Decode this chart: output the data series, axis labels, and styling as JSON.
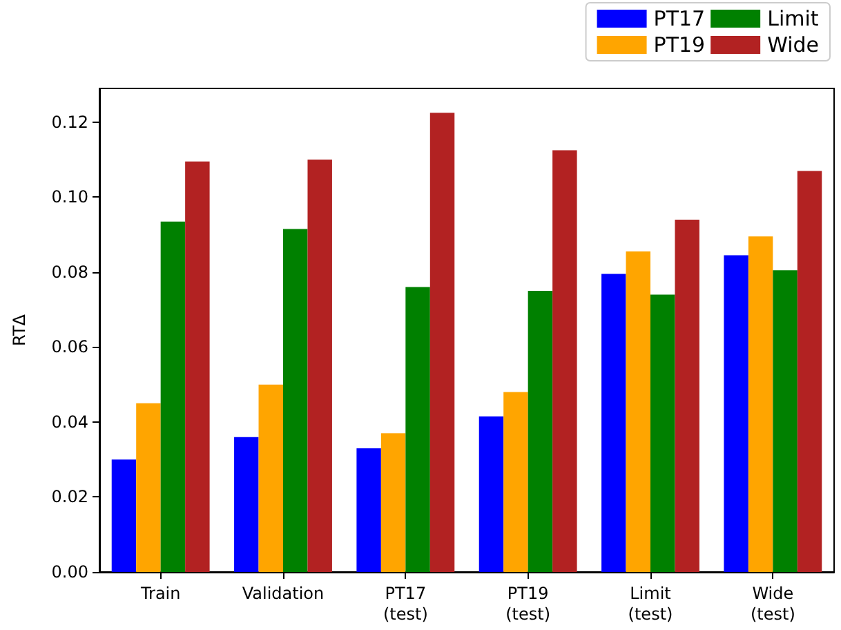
{
  "chart_data": {
    "type": "bar",
    "ylabel": "RTΔ",
    "categories": [
      "Train",
      "Validation",
      "PT17\n(test)",
      "PT19\n(test)",
      "Limit\n(test)",
      "Wide\n(test)"
    ],
    "series": [
      {
        "name": "PT17",
        "color": "#0000ff",
        "values": [
          0.03,
          0.036,
          0.033,
          0.0415,
          0.0795,
          0.0845
        ]
      },
      {
        "name": "PT19",
        "color": "#ffa500",
        "values": [
          0.045,
          0.05,
          0.037,
          0.048,
          0.0855,
          0.0895
        ]
      },
      {
        "name": "Limit",
        "color": "#008000",
        "values": [
          0.0935,
          0.0915,
          0.076,
          0.075,
          0.074,
          0.0805
        ]
      },
      {
        "name": "Wide",
        "color": "#b22222",
        "values": [
          0.1095,
          0.11,
          0.1225,
          0.1125,
          0.094,
          0.107
        ]
      }
    ],
    "ylim": [
      0,
      0.129
    ],
    "yticks": [
      {
        "value": 0,
        "label": "0.00"
      },
      {
        "value": 0.02,
        "label": "0.02"
      },
      {
        "value": 0.04,
        "label": "0.04"
      },
      {
        "value": 0.06,
        "label": "0.06"
      },
      {
        "value": 0.08,
        "label": "0.08"
      },
      {
        "value": 0.1,
        "label": "0.10"
      },
      {
        "value": 0.12,
        "label": "0.12"
      }
    ],
    "grid": false,
    "legend": "top right"
  }
}
